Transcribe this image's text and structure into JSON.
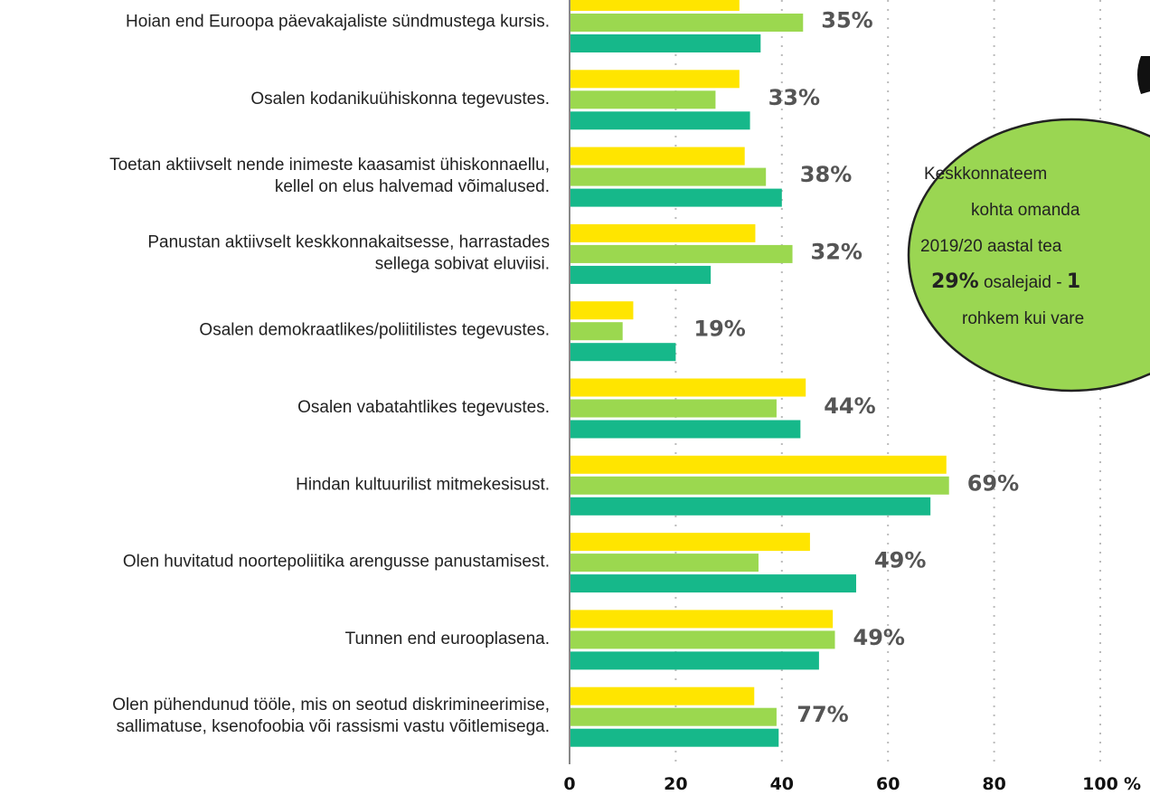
{
  "chart_data": {
    "type": "bar",
    "orientation": "horizontal",
    "categories": [
      [
        "Hoian end Euroopa päevakajaliste sündmustega kursis."
      ],
      [
        "Osalen kodanikuühiskonna tegevustes."
      ],
      [
        "Toetan aktiivselt nende inimeste kaasamist ühiskonnaellu,",
        "kellel on elus halvemad võimalused."
      ],
      [
        "Panustan aktiivselt keskkonnakaitsesse, harrastades",
        "sellega sobivat eluviisi."
      ],
      [
        "Osalen demokraatlikes/poliitilistes tegevustes."
      ],
      [
        "Osalen vabatahtlikes tegevustes."
      ],
      [
        "Hindan kultuurilist mitmekesisust."
      ],
      [
        "Olen huvitatud noortepoliitika arengusse panustamisest."
      ],
      [
        "Tunnen end eurooplasena."
      ],
      [
        "Olen pühendunud tööle, mis on seotud diskrimineerimise,",
        "sallimatuse, ksenofoobia või rassismi vastu võitlemisega."
      ]
    ],
    "series": [
      {
        "color": "#ffe500",
        "values": [
          32,
          32,
          33,
          35,
          12,
          44.5,
          71,
          45.3,
          49.6,
          34.8
        ]
      },
      {
        "color": "#9bd84f",
        "values": [
          44,
          27.5,
          37,
          42,
          10,
          39,
          71.5,
          35.6,
          50,
          39
        ]
      },
      {
        "color": "#16b88a",
        "values": [
          36,
          34,
          40,
          26.6,
          20,
          43.5,
          68,
          54,
          47,
          39.4
        ]
      }
    ],
    "values": [
      35,
      33,
      38,
      32,
      19,
      44,
      69,
      49,
      49,
      77
    ],
    "value_labels": [
      "35%",
      "33%",
      "38%",
      "32%",
      "19%",
      "44%",
      "69%",
      "49%",
      "49%",
      "77%"
    ],
    "value_label_color": "#555555",
    "x_label": "%",
    "xlim": [
      0,
      100
    ],
    "xticks": [
      0,
      20,
      40,
      60,
      80,
      100
    ],
    "grid": true,
    "callout": {
      "lines": [
        [
          "Keskkonnateem"
        ],
        [
          "kohta omanda"
        ],
        [
          "2019/20 aastal tea"
        ],
        [
          "29%",
          " osalejaid - ",
          "1"
        ],
        [
          "rohkem kui vare"
        ]
      ],
      "color": "#9ad652"
    }
  }
}
